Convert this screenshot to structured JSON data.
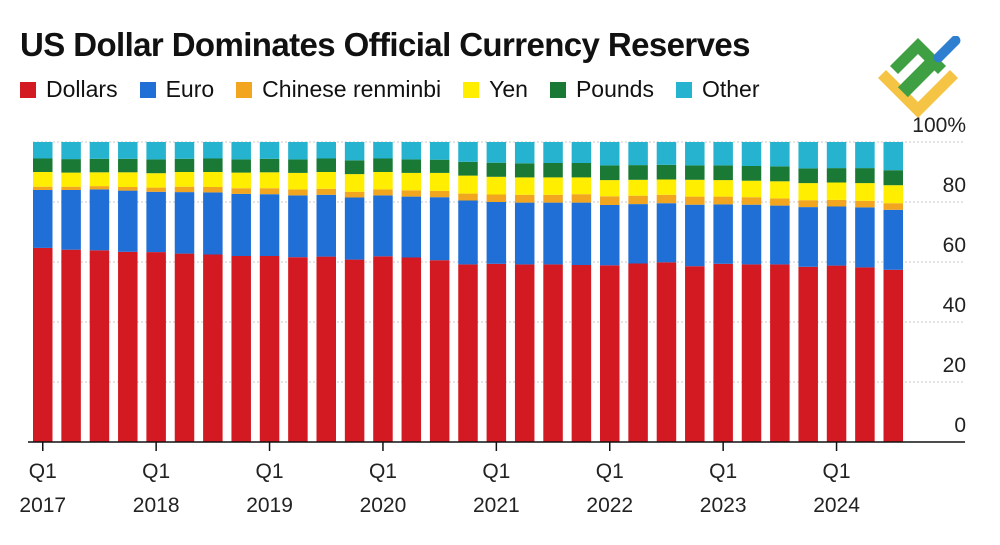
{
  "title": "US Dollar Dominates Official Currency Reserves",
  "colors": {
    "Dollars": "#d31a22",
    "Euro": "#1f6fd6",
    "Chinese renminbi": "#f2a51f",
    "Yen": "#ffee00",
    "Pounds": "#1a7a35",
    "Other": "#25b3cf"
  },
  "chart_data": {
    "type": "bar",
    "stacked": true,
    "title": "US Dollar Dominates Official Currency Reserves",
    "ylim": [
      0,
      100
    ],
    "y_ticks": [
      "0",
      "20",
      "40",
      "60",
      "80",
      "100%"
    ],
    "x_ticks": [
      {
        "quarter": "Q1",
        "year": "2017"
      },
      {
        "quarter": "Q1",
        "year": "2018"
      },
      {
        "quarter": "Q1",
        "year": "2019"
      },
      {
        "quarter": "Q1",
        "year": "2020"
      },
      {
        "quarter": "Q1",
        "year": "2021"
      },
      {
        "quarter": "Q1",
        "year": "2022"
      },
      {
        "quarter": "Q1",
        "year": "2023"
      },
      {
        "quarter": "Q1",
        "year": "2024"
      }
    ],
    "categories": [
      "2017Q1",
      "2017Q2",
      "2017Q3",
      "2017Q4",
      "2018Q1",
      "2018Q2",
      "2018Q3",
      "2018Q4",
      "2019Q1",
      "2019Q2",
      "2019Q3",
      "2019Q4",
      "2020Q1",
      "2020Q2",
      "2020Q3",
      "2020Q4",
      "2021Q1",
      "2021Q2",
      "2021Q3",
      "2021Q4",
      "2022Q1",
      "2022Q2",
      "2022Q3",
      "2022Q4",
      "2023Q1",
      "2023Q2",
      "2023Q3",
      "2023Q4",
      "2024Q1",
      "2024Q2",
      "2024Q3"
    ],
    "grid": true,
    "legend_position": "top-left",
    "series": [
      {
        "name": "Dollars",
        "values": [
          64.7,
          64.1,
          63.9,
          63.4,
          63.3,
          62.8,
          62.5,
          62.0,
          62.0,
          61.6,
          61.8,
          60.8,
          61.9,
          61.5,
          60.6,
          59.2,
          59.4,
          59.2,
          59.2,
          59.0,
          58.9,
          59.5,
          59.9,
          58.6,
          59.4,
          59.2,
          59.2,
          58.4,
          58.8,
          58.2,
          57.4
        ]
      },
      {
        "name": "Euro",
        "values": [
          19.3,
          19.9,
          20.3,
          20.4,
          20.1,
          20.5,
          20.7,
          20.7,
          20.6,
          20.6,
          20.6,
          20.7,
          20.3,
          20.3,
          21.0,
          21.3,
          20.6,
          20.6,
          20.6,
          20.8,
          20.1,
          19.8,
          19.7,
          20.5,
          19.8,
          19.9,
          19.6,
          19.9,
          19.7,
          20.0,
          20.0
        ]
      },
      {
        "name": "Chinese renminbi",
        "values": [
          1.1,
          1.1,
          1.1,
          1.2,
          1.4,
          1.8,
          1.8,
          1.9,
          2.0,
          2.0,
          2.0,
          1.9,
          2.0,
          2.1,
          2.1,
          2.3,
          2.5,
          2.6,
          2.6,
          2.8,
          2.9,
          2.8,
          2.8,
          2.7,
          2.6,
          2.5,
          2.4,
          2.3,
          2.2,
          2.2,
          2.2
        ]
      },
      {
        "name": "Yen",
        "values": [
          4.9,
          4.7,
          4.6,
          4.9,
          4.8,
          4.9,
          5.0,
          5.2,
          5.3,
          5.5,
          5.6,
          5.9,
          5.8,
          5.8,
          6.0,
          6.0,
          5.9,
          5.8,
          5.8,
          5.6,
          5.4,
          5.3,
          5.1,
          5.6,
          5.5,
          5.5,
          5.7,
          5.7,
          5.8,
          5.9,
          6.0
        ]
      },
      {
        "name": "Pounds",
        "values": [
          4.5,
          4.5,
          4.5,
          4.5,
          4.6,
          4.4,
          4.5,
          4.4,
          4.5,
          4.5,
          4.5,
          4.6,
          4.5,
          4.5,
          4.4,
          4.6,
          4.7,
          4.7,
          4.8,
          4.8,
          4.9,
          4.9,
          4.9,
          4.8,
          4.9,
          4.9,
          5.0,
          4.9,
          4.8,
          5.0,
          5.0
        ]
      },
      {
        "name": "Other",
        "values": [
          5.5,
          5.7,
          5.6,
          5.6,
          5.8,
          5.6,
          5.5,
          5.8,
          5.6,
          5.8,
          5.5,
          6.1,
          5.5,
          5.8,
          5.9,
          6.6,
          6.9,
          7.1,
          7.0,
          7.0,
          7.8,
          7.7,
          7.6,
          7.8,
          7.8,
          8.0,
          8.1,
          8.8,
          8.7,
          8.7,
          9.4
        ]
      }
    ]
  }
}
